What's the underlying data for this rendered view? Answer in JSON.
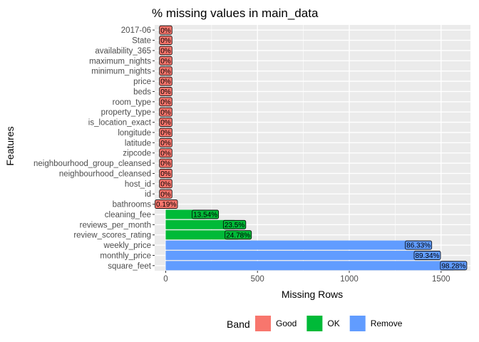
{
  "chart_data": {
    "type": "bar",
    "orientation": "horizontal",
    "title": "% missing values in main_data",
    "xlabel": "Missing Rows",
    "ylabel": "Features",
    "xlim": [
      -60,
      1660
    ],
    "xticks": [
      0,
      500,
      1000,
      1500
    ],
    "grid": true,
    "legend": {
      "title": "Band",
      "position": "bottom",
      "entries": [
        {
          "name": "Good",
          "color": "#F8766D"
        },
        {
          "name": "OK",
          "color": "#00BA38"
        },
        {
          "name": "Remove",
          "color": "#619CFF"
        }
      ]
    },
    "bars": [
      {
        "feature": "2017-06",
        "value": 0,
        "label": "0%",
        "band": "Good"
      },
      {
        "feature": "State",
        "value": 0,
        "label": "0%",
        "band": "Good"
      },
      {
        "feature": "availability_365",
        "value": 0,
        "label": "0%",
        "band": "Good"
      },
      {
        "feature": "maximum_nights",
        "value": 0,
        "label": "0%",
        "band": "Good"
      },
      {
        "feature": "minimum_nights",
        "value": 0,
        "label": "0%",
        "band": "Good"
      },
      {
        "feature": "price",
        "value": 0,
        "label": "0%",
        "band": "Good"
      },
      {
        "feature": "beds",
        "value": 0,
        "label": "0%",
        "band": "Good"
      },
      {
        "feature": "room_type",
        "value": 0,
        "label": "0%",
        "band": "Good"
      },
      {
        "feature": "property_type",
        "value": 0,
        "label": "0%",
        "band": "Good"
      },
      {
        "feature": "is_location_exact",
        "value": 0,
        "label": "0%",
        "band": "Good"
      },
      {
        "feature": "longitude",
        "value": 0,
        "label": "0%",
        "band": "Good"
      },
      {
        "feature": "latitude",
        "value": 0,
        "label": "0%",
        "band": "Good"
      },
      {
        "feature": "zipcode",
        "value": 0,
        "label": "0%",
        "band": "Good"
      },
      {
        "feature": "neighbourhood_group_cleansed",
        "value": 0,
        "label": "0%",
        "band": "Good"
      },
      {
        "feature": "neighbourhood_cleansed",
        "value": 0,
        "label": "0%",
        "band": "Good"
      },
      {
        "feature": "host_id",
        "value": 0,
        "label": "0%",
        "band": "Good"
      },
      {
        "feature": "id",
        "value": 0,
        "label": "0%",
        "band": "Good"
      },
      {
        "feature": "bathrooms",
        "value": 3,
        "label": "0.19%",
        "band": "Good"
      },
      {
        "feature": "cleaning_fee",
        "value": 216,
        "label": "13.54%",
        "band": "OK"
      },
      {
        "feature": "reviews_per_month",
        "value": 375,
        "label": "23.5%",
        "band": "OK"
      },
      {
        "feature": "review_scores_rating",
        "value": 395,
        "label": "24.78%",
        "band": "OK"
      },
      {
        "feature": "weekly_price",
        "value": 1377,
        "label": "86.33%",
        "band": "Remove"
      },
      {
        "feature": "monthly_price",
        "value": 1425,
        "label": "89.34%",
        "band": "Remove"
      },
      {
        "feature": "square_feet",
        "value": 1568,
        "label": "98.28%",
        "band": "Remove"
      }
    ]
  }
}
